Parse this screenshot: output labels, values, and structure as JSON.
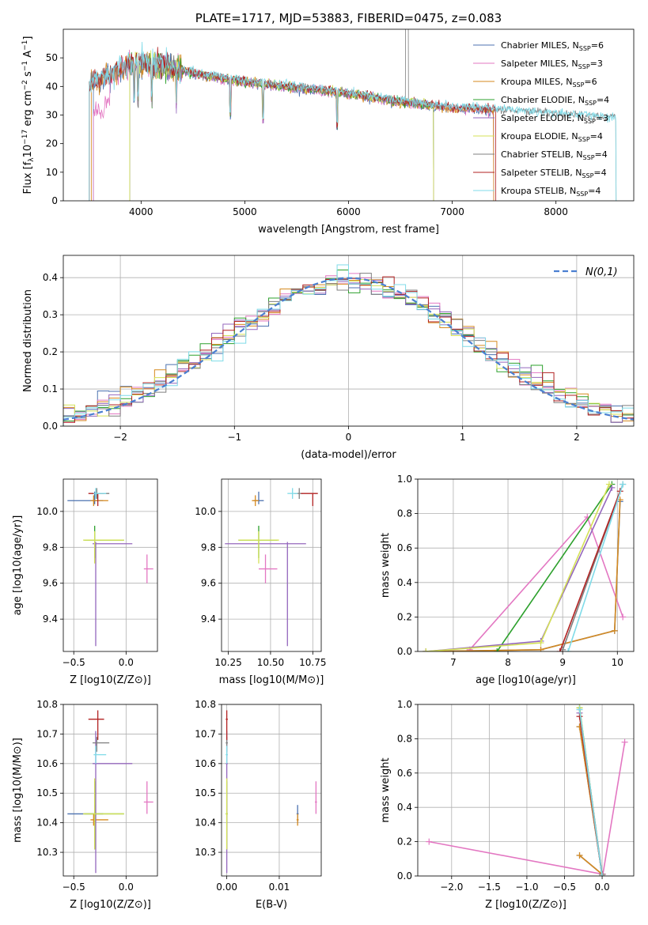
{
  "chart_data": [
    {
      "id": "spectrum",
      "type": "line",
      "title": "PLATE=1717, MJD=53883, FIBERID=0475, z=0.083",
      "xlabel": "wavelength [Angstrom, rest frame]",
      "ylabel": "Flux [f_λ 10^-17 erg cm^-2 s^-1 A^-1]",
      "xlim": [
        3250,
        8750
      ],
      "ylim": [
        0,
        60
      ],
      "xticks": [
        4000,
        5000,
        6000,
        7000,
        8000
      ],
      "yticks": [
        0,
        10,
        20,
        30,
        40,
        50
      ],
      "grid": false,
      "legend_position": "top-right",
      "continuum_points": [
        [
          3500,
          40
        ],
        [
          3700,
          44
        ],
        [
          3950,
          48
        ],
        [
          4200,
          47
        ],
        [
          4500,
          44
        ],
        [
          5000,
          41
        ],
        [
          5500,
          39
        ],
        [
          6000,
          37
        ],
        [
          6500,
          34
        ],
        [
          7000,
          32
        ],
        [
          7500,
          31
        ],
        [
          8000,
          29.5
        ],
        [
          8500,
          28.5
        ]
      ],
      "series": [
        {
          "name": "Chabrier MILES",
          "nssp": "6",
          "color": "#4c72b0",
          "range": [
            3540,
            7400
          ]
        },
        {
          "name": "Salpeter MILES",
          "nssp": "3",
          "color": "#e377c2",
          "range": [
            3540,
            7400
          ]
        },
        {
          "name": "Kroupa MILES",
          "nssp": "6",
          "color": "#d68a1f",
          "range": [
            3520,
            7400
          ]
        },
        {
          "name": "Chabrier ELODIE",
          "nssp": "4",
          "color": "#2ca02c",
          "range": [
            3890,
            6820
          ]
        },
        {
          "name": "Salpeter ELODIE",
          "nssp": "3",
          "color": "#9467bd",
          "range": [
            3890,
            6820
          ]
        },
        {
          "name": "Kroupa ELODIE",
          "nssp": "4",
          "color": "#d4e157",
          "range": [
            3890,
            6820
          ]
        },
        {
          "name": "Chabrier STELIB",
          "nssp": "4",
          "color": "#7f7f7f",
          "range": [
            3500,
            8580
          ]
        },
        {
          "name": "Salpeter STELIB",
          "nssp": "4",
          "color": "#b22222",
          "range": [
            3500,
            7420
          ]
        },
        {
          "name": "Kroupa STELIB",
          "nssp": "4",
          "color": "#7fdbe8",
          "range": [
            3500,
            8580
          ]
        }
      ]
    },
    {
      "id": "residuals",
      "type": "bar",
      "xlabel": "(data-model)/error",
      "ylabel": "Normed distribution",
      "xlim": [
        -2.5,
        2.5
      ],
      "ylim": [
        0,
        0.46
      ],
      "xticks": [
        -2,
        -1,
        0,
        1,
        2
      ],
      "yticks": [
        0.0,
        0.1,
        0.2,
        0.3,
        0.4
      ],
      "grid": true,
      "legend": "N(0,1)",
      "legend_position": "top-right",
      "gaussian_color": "#4a7fd1",
      "bins": {
        "min": -2.5,
        "width": 0.1,
        "count": 50
      }
    },
    {
      "id": "age-vs-Z",
      "type": "scatter",
      "xlabel": "Z [log10(Z/Z⊙)]",
      "ylabel": "age [log10(age/yr)]",
      "xlim": [
        -0.6,
        0.3
      ],
      "ylim": [
        9.22,
        10.18
      ],
      "xticks": [
        -0.5,
        0.0
      ],
      "yticks": [
        9.4,
        9.6,
        9.8,
        10.0
      ],
      "grid": true
    },
    {
      "id": "age-vs-mass",
      "type": "scatter",
      "xlabel": "mass [log10(M/M⊙)]",
      "xlim": [
        10.21,
        10.8
      ],
      "ylim": [
        9.22,
        10.18
      ],
      "xticks": [
        10.25,
        10.5,
        10.75
      ],
      "yticks": [
        9.4,
        9.6,
        9.8,
        10.0
      ],
      "grid": true
    },
    {
      "id": "weight-vs-age",
      "type": "line",
      "xlabel": "age [log10(age/yr)]",
      "ylabel": "mass weight",
      "xlim": [
        6.35,
        10.3
      ],
      "ylim": [
        0,
        1
      ],
      "xticks": [
        7,
        8,
        9,
        10
      ],
      "yticks": [
        0.0,
        0.2,
        0.4,
        0.6,
        0.8,
        1.0
      ],
      "grid": true
    },
    {
      "id": "mass-vs-Z",
      "type": "scatter",
      "xlabel": "Z [log10(Z/Z⊙)]",
      "ylabel": "mass [log10(M/M⊙)]",
      "xlim": [
        -0.6,
        0.3
      ],
      "ylim": [
        10.22,
        10.8
      ],
      "xticks": [
        -0.5,
        0.0
      ],
      "yticks": [
        10.3,
        10.4,
        10.5,
        10.6,
        10.7,
        10.8
      ],
      "grid": true
    },
    {
      "id": "mass-vs-EBV",
      "type": "scatter",
      "xlabel": "E(B-V)",
      "xlim": [
        -0.001,
        0.018
      ],
      "ylim": [
        10.22,
        10.8
      ],
      "xticks": [
        0.0,
        0.01
      ],
      "yticks": [
        10.3,
        10.4,
        10.5,
        10.6,
        10.7,
        10.8
      ],
      "grid": true
    },
    {
      "id": "weight-vs-Z",
      "type": "line",
      "xlabel": "Z [log10(Z/Z⊙)]",
      "ylabel": "mass weight",
      "xlim": [
        -2.45,
        0.42
      ],
      "ylim": [
        0,
        1
      ],
      "xticks": [
        -2.0,
        -1.5,
        -1.0,
        -0.5,
        0.0
      ],
      "yticks": [
        0.0,
        0.2,
        0.4,
        0.6,
        0.8,
        1.0
      ],
      "grid": true
    }
  ],
  "models": [
    {
      "color": "#4c72b0",
      "Z": -0.3,
      "Zerr": [
        0.26,
        0.08
      ],
      "age": 10.06,
      "ageErr": [
        0.02,
        0.05
      ],
      "mass": 10.43,
      "massErr": [
        0.03,
        0.03
      ],
      "ebv": 0.0135,
      "ebvErr": [
        0.03,
        0.03
      ],
      "sfh_age": [
        [
          6.5,
          0
        ],
        [
          8.6,
          0.01
        ],
        [
          9.95,
          0.12
        ],
        [
          10.05,
          0.87
        ]
      ],
      "sfh_Z": [
        [
          -0.3,
          0.12
        ],
        [
          0,
          0.01
        ],
        [
          -0.3,
          0.87
        ]
      ]
    },
    {
      "color": "#e377c2",
      "Z": 0.2,
      "Zerr": [
        0.03,
        0.06
      ],
      "age": 9.68,
      "ageErr": [
        0.08,
        0.08
      ],
      "mass": 10.47,
      "massErr": [
        0.04,
        0.07
      ],
      "ebv": 0.017,
      "ebvErr": [
        0.04,
        0.07
      ],
      "sfh_age": [
        [
          7.3,
          0.01
        ],
        [
          9.45,
          0.78
        ],
        [
          10.1,
          0.2
        ]
      ],
      "sfh_Z": [
        [
          -2.3,
          0.2
        ],
        [
          0.01,
          0.01
        ],
        [
          0.3,
          0.78
        ]
      ]
    },
    {
      "color": "#d68a1f",
      "Z": -0.31,
      "Zerr": [
        0.03,
        0.14
      ],
      "age": 10.06,
      "ageErr": [
        0.03,
        0.03
      ],
      "mass": 10.41,
      "massErr": [
        0.02,
        0.02
      ],
      "ebv": 0.0135,
      "ebvErr": [
        0.02,
        0.02
      ],
      "sfh_age": [
        [
          6.5,
          0
        ],
        [
          8.6,
          0.01
        ],
        [
          9.95,
          0.12
        ],
        [
          10.05,
          0.88
        ]
      ],
      "sfh_Z": [
        [
          -0.3,
          0.12
        ],
        [
          0,
          0.01
        ],
        [
          -0.3,
          0.87
        ]
      ]
    },
    {
      "color": "#2ca02c",
      "Z": -0.3,
      "Zerr": [
        0.1,
        0.28
      ],
      "age": 9.84,
      "ageErr": [
        0.1,
        0.08
      ],
      "mass": 10.43,
      "massErr": [
        0.12,
        0.11
      ],
      "ebv": 0.0,
      "ebvErr": [
        0.12,
        0.12
      ],
      "sfh_age": [
        [
          7.8,
          0
        ],
        [
          9.9,
          0.97
        ]
      ],
      "sfh_Z": [
        [
          0.0,
          0
        ],
        [
          -0.3,
          0.98
        ]
      ]
    },
    {
      "color": "#9467bd",
      "Z": -0.29,
      "Zerr": [
        0.03,
        0.35
      ],
      "age": 9.82,
      "ageErr": [
        0.57,
        0.01
      ],
      "mass": 10.6,
      "massErr": [
        0.37,
        0.11
      ],
      "ebv": 0.0,
      "ebvErr": [
        0.2,
        0.2
      ],
      "sfh_age": [
        [
          6.5,
          0
        ],
        [
          8.6,
          0.06
        ],
        [
          9.9,
          0.95
        ]
      ],
      "sfh_Z": [
        [
          0.0,
          0
        ],
        [
          -0.3,
          0.95
        ]
      ]
    },
    {
      "color": "#d4e157",
      "Z": -0.3,
      "Zerr": [
        0.11,
        0.28
      ],
      "age": 9.84,
      "ageErr": [
        0.13,
        0.05
      ],
      "mass": 10.43,
      "massErr": [
        0.12,
        0.12
      ],
      "ebv": 0.0,
      "ebvErr": [
        0.15,
        0.13
      ],
      "sfh_age": [
        [
          6.5,
          0
        ],
        [
          8.6,
          0.05
        ],
        [
          9.85,
          0.97
        ]
      ],
      "sfh_Z": [
        [
          0.0,
          0
        ],
        [
          -0.3,
          0.98
        ]
      ]
    },
    {
      "color": "#7f7f7f",
      "Z": -0.28,
      "Zerr": [
        0.04,
        0.12
      ],
      "age": 10.1,
      "ageErr": [
        0.03,
        0.03
      ],
      "mass": 10.67,
      "massErr": [
        0.03,
        0.02
      ],
      "ebv": 0.0,
      "ebvErr": [
        0.03,
        0.03
      ],
      "sfh_age": [
        [
          9.0,
          0.01
        ],
        [
          10.1,
          0.97
        ]
      ],
      "sfh_Z": [
        [
          0.0,
          0.01
        ],
        [
          -0.3,
          0.97
        ]
      ]
    },
    {
      "color": "#b22222",
      "Z": -0.27,
      "Zerr": [
        0.09,
        0.06
      ],
      "age": 10.1,
      "ageErr": [
        0.07,
        0.0
      ],
      "mass": 10.75,
      "massErr": [
        0.07,
        0.03
      ],
      "ebv": 0.0,
      "ebvErr": [
        0.04,
        0.04
      ],
      "sfh_age": [
        [
          8.95,
          0
        ],
        [
          10.05,
          0.93
        ]
      ],
      "sfh_Z": [
        [
          0.0,
          0
        ],
        [
          -0.3,
          0.93
        ]
      ]
    },
    {
      "color": "#7fdbe8",
      "Z": -0.29,
      "Zerr": [
        0.02,
        0.1
      ],
      "age": 10.1,
      "ageErr": [
        0.03,
        0.03
      ],
      "mass": 10.63,
      "massErr": [
        0.03,
        0.03
      ],
      "ebv": 0.0,
      "ebvErr": [
        0.03,
        0.03
      ],
      "sfh_age": [
        [
          9.1,
          0
        ],
        [
          10.1,
          0.97
        ]
      ],
      "sfh_Z": [
        [
          0.0,
          0
        ],
        [
          -0.3,
          0.97
        ]
      ]
    }
  ]
}
